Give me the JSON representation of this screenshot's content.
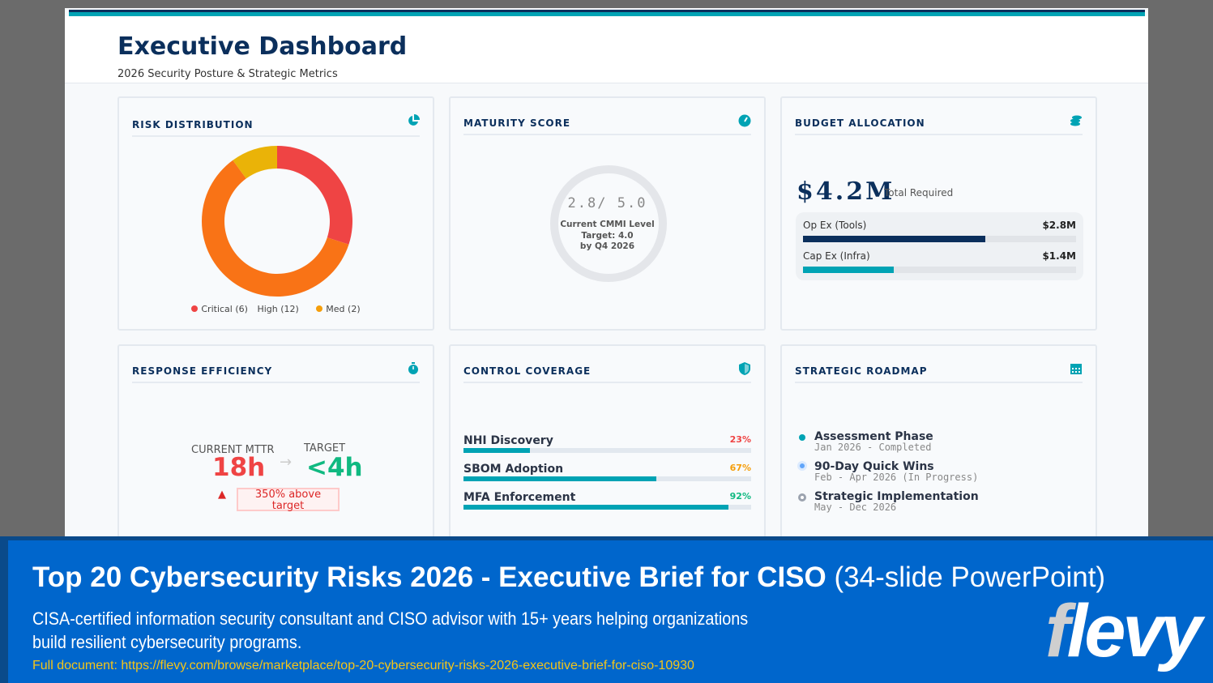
{
  "header": {
    "title": "Executive Dashboard",
    "subtitle": "2026 Security Posture & Strategic Metrics"
  },
  "risk": {
    "title": "RISK DISTRIBUTION",
    "icon": "pie-chart-icon",
    "chart_data": {
      "type": "pie",
      "categories": [
        "Critical",
        "High",
        "Med"
      ],
      "values": [
        6,
        12,
        2
      ],
      "colors": [
        "#ef4444",
        "#f97316",
        "#eab308"
      ]
    },
    "legend": [
      "Critical (6)",
      "High (12)",
      "Med (2)"
    ]
  },
  "maturity": {
    "title": "MATURITY SCORE",
    "icon": "gauge-icon",
    "score": "2.8/ 5.0",
    "label": "Current CMMI Level",
    "target": "Target: 4.0",
    "by": "by Q4 2026"
  },
  "budget": {
    "title": "BUDGET ALLOCATION",
    "icon": "coins-icon",
    "total": "$4.2M",
    "total_label": "Total Required",
    "items": [
      {
        "label": "Op Ex (Tools)",
        "value": "$2.8M",
        "fraction": 0.667,
        "color": "#0b2f5c"
      },
      {
        "label": "Cap Ex (Infra)",
        "value": "$1.4M",
        "fraction": 0.333,
        "color": "#00a3b4"
      }
    ]
  },
  "response": {
    "title": "RESPONSE EFFICIENCY",
    "icon": "stopwatch-icon",
    "current_label": "CURRENT MTTR",
    "current": "18h",
    "target_label": "TARGET",
    "target": "<4h",
    "warning": "350% above target"
  },
  "coverage": {
    "title": "CONTROL COVERAGE",
    "icon": "shield-icon",
    "items": [
      {
        "label": "NHI Discovery",
        "pct": "23%",
        "value": 23,
        "color": "#ef4444"
      },
      {
        "label": "SBOM Adoption",
        "pct": "67%",
        "value": 67,
        "color": "#f59e0b"
      },
      {
        "label": "MFA Enforcement",
        "pct": "92%",
        "value": 92,
        "color": "#10b981"
      }
    ]
  },
  "roadmap": {
    "title": "STRATEGIC ROADMAP",
    "icon": "calendar-icon",
    "items": [
      {
        "name": "Assessment Phase",
        "status": "Jan 2026 - Completed"
      },
      {
        "name": "90-Day Quick Wins",
        "status": "Feb - Apr 2026 (In Progress)"
      },
      {
        "name": "Strategic Implementation",
        "status": "May - Dec 2026"
      }
    ]
  },
  "banner": {
    "title": "Top 20 Cybersecurity Risks 2026 - Executive Brief for CISO",
    "title_suffix": "(34-slide PowerPoint)",
    "description": "CISA-certified information security consultant and CISO advisor with 15+ years helping organizations build resilient cybersecurity programs.",
    "link": "Full document: https://flevy.com/browse/marketplace/top-20-cybersecurity-risks-2026-executive-brief-for-ciso-10930",
    "logo": "flevy"
  }
}
